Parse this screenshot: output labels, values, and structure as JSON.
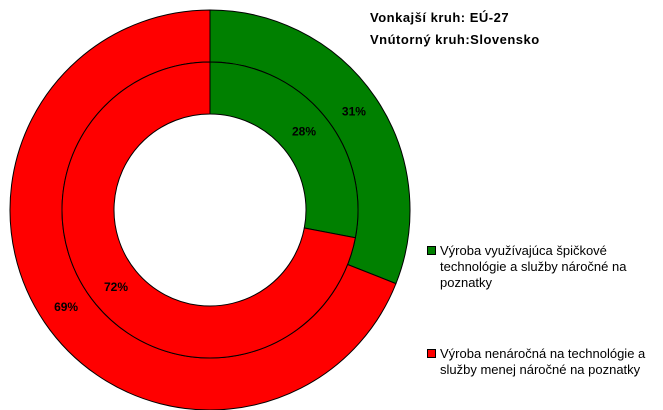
{
  "chart_data": {
    "type": "donut",
    "title": [
      "Vonkajší kruh: EÚ-27",
      "Vnútorný kruh:Slovensko"
    ],
    "categories": [
      "Výroba využívajúca špičkové technológie a služby náročné na poznatky",
      "Výroba nenáročná na technológie a služby menej náročné na poznatky"
    ],
    "colors": [
      "#008000",
      "#ff0000"
    ],
    "rings": [
      {
        "values": [
          31,
          69
        ],
        "value_labels": [
          "31%",
          "69%"
        ]
      },
      {
        "values": [
          28,
          72
        ],
        "value_labels": [
          "28%",
          "72%"
        ]
      }
    ]
  }
}
